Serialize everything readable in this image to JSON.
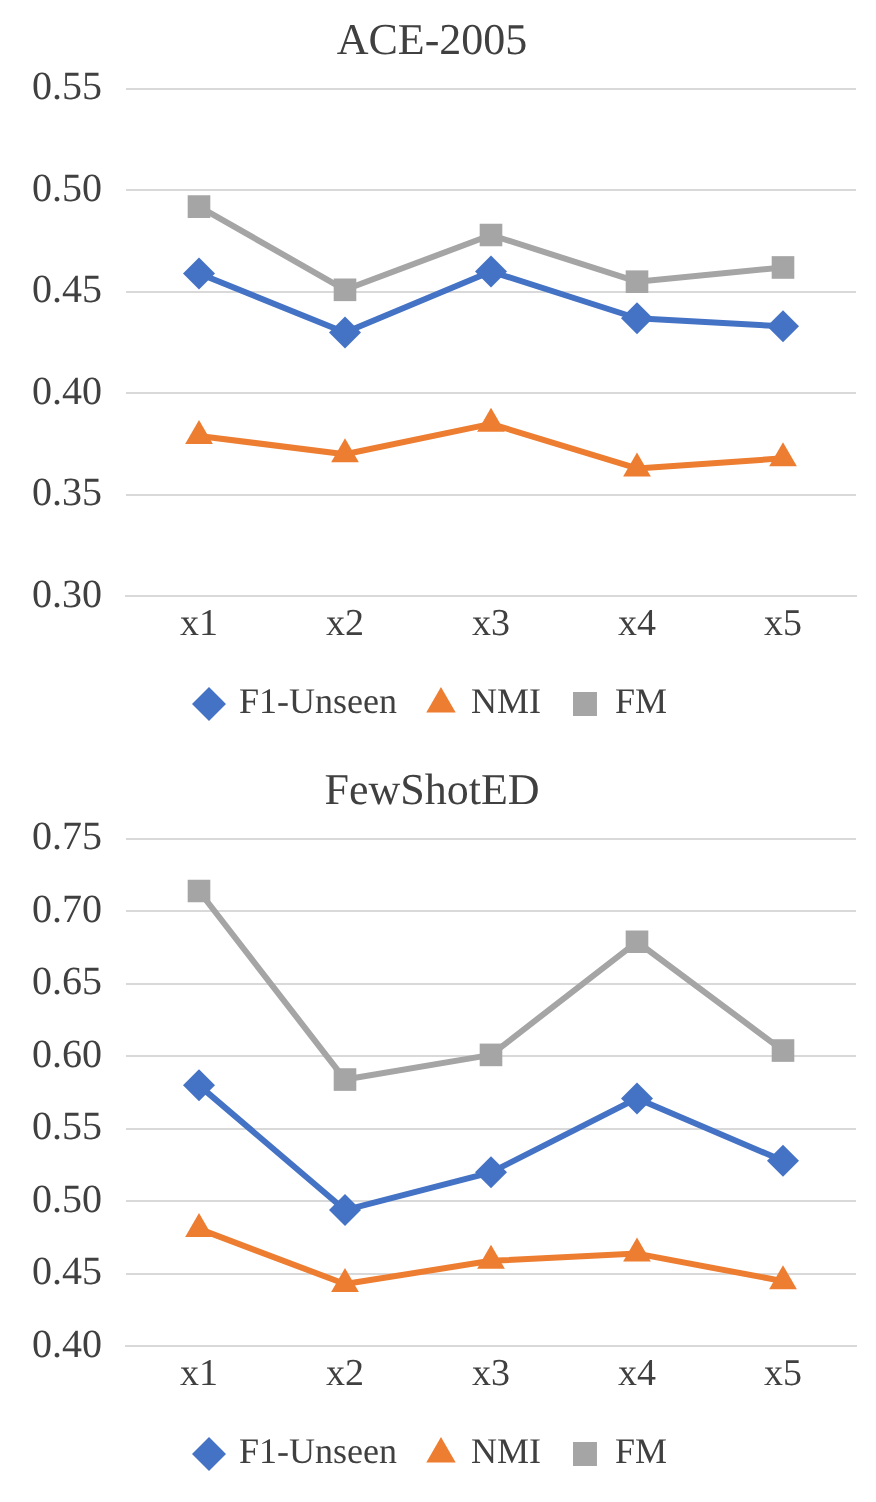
{
  "chart_data": [
    {
      "type": "line",
      "title": "ACE-2005",
      "categories": [
        "x1",
        "x2",
        "x3",
        "x4",
        "x5"
      ],
      "series": [
        {
          "name": "F1-Unseen",
          "color": "#4472c4",
          "marker": "diamond",
          "values": [
            0.459,
            0.43,
            0.46,
            0.437,
            0.433
          ]
        },
        {
          "name": "NMI",
          "color": "#ed7d31",
          "marker": "triangle",
          "values": [
            0.379,
            0.37,
            0.385,
            0.363,
            0.368
          ]
        },
        {
          "name": "FM",
          "color": "#a5a5a5",
          "marker": "square",
          "values": [
            0.492,
            0.451,
            0.478,
            0.455,
            0.462
          ]
        }
      ],
      "ylim": [
        0.3,
        0.55
      ],
      "yticks": [
        {
          "value": 0.3,
          "label": "0.30"
        },
        {
          "value": 0.35,
          "label": "0.35"
        },
        {
          "value": 0.4,
          "label": "0.40"
        },
        {
          "value": 0.45,
          "label": "0.45"
        },
        {
          "value": 0.5,
          "label": "0.50"
        },
        {
          "value": 0.55,
          "label": "0.55"
        }
      ],
      "grid": "y",
      "legend": "bottom"
    },
    {
      "type": "line",
      "title": "FewShotED",
      "categories": [
        "x1",
        "x2",
        "x3",
        "x4",
        "x5"
      ],
      "series": [
        {
          "name": "F1-Unseen",
          "color": "#4472c4",
          "marker": "diamond",
          "values": [
            0.58,
            0.494,
            0.52,
            0.571,
            0.528
          ]
        },
        {
          "name": "NMI",
          "color": "#ed7d31",
          "marker": "triangle",
          "values": [
            0.481,
            0.443,
            0.459,
            0.464,
            0.445
          ]
        },
        {
          "name": "FM",
          "color": "#a5a5a5",
          "marker": "square",
          "values": [
            0.714,
            0.584,
            0.601,
            0.679,
            0.604
          ]
        }
      ],
      "ylim": [
        0.4,
        0.75
      ],
      "yticks": [
        {
          "value": 0.4,
          "label": "0.40"
        },
        {
          "value": 0.45,
          "label": "0.45"
        },
        {
          "value": 0.5,
          "label": "0.50"
        },
        {
          "value": 0.55,
          "label": "0.55"
        },
        {
          "value": 0.6,
          "label": "0.60"
        },
        {
          "value": 0.65,
          "label": "0.65"
        },
        {
          "value": 0.7,
          "label": "0.70"
        },
        {
          "value": 0.75,
          "label": "0.75"
        }
      ],
      "grid": "y",
      "legend": "bottom"
    }
  ]
}
